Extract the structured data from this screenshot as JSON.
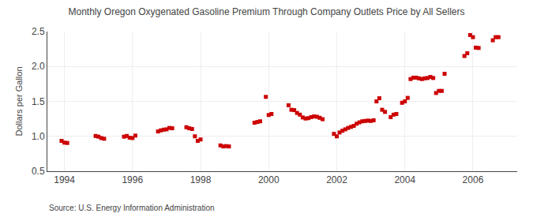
{
  "chart_data": {
    "type": "scatter",
    "title": "Monthly Oregon Oxygenated Gasoline Premium Through Company Outlets Price by All Sellers",
    "ylabel": "Dollars per Gallon",
    "annotations": [
      "Source: U.S. Energy Information Administration"
    ],
    "color": "#cc0000",
    "marker": "square",
    "grid": true,
    "xlim": [
      1993.5,
      2007.3
    ],
    "ylim": [
      0.5,
      2.5
    ],
    "xticks": [
      1994,
      1996,
      1998,
      2000,
      2002,
      2004,
      2006
    ],
    "yticks": [
      0.5,
      {
        "value": 1.0,
        "label": "1.0"
      },
      1.5,
      {
        "value": 2.0,
        "label": "2.0"
      },
      2.5
    ],
    "x": [
      1993.917,
      1994.0,
      1994.083,
      1994.917,
      1995.0,
      1995.083,
      1995.167,
      1995.75,
      1995.833,
      1995.917,
      1996.0,
      1996.083,
      1996.75,
      1996.833,
      1996.917,
      1997.0,
      1997.083,
      1997.167,
      1997.583,
      1997.667,
      1997.75,
      1997.833,
      1997.917,
      1998.0,
      1998.583,
      1998.667,
      1998.75,
      1998.833,
      1999.583,
      1999.667,
      1999.75,
      1999.917,
      2000.0,
      2000.083,
      2000.583,
      2000.667,
      2000.75,
      2000.833,
      2000.917,
      2001.0,
      2001.083,
      2001.167,
      2001.25,
      2001.333,
      2001.417,
      2001.5,
      2001.583,
      2001.917,
      2002.0,
      2002.083,
      2002.167,
      2002.25,
      2002.333,
      2002.417,
      2002.5,
      2002.583,
      2002.667,
      2002.75,
      2002.833,
      2002.917,
      2003.0,
      2003.083,
      2003.167,
      2003.25,
      2003.333,
      2003.417,
      2003.583,
      2003.667,
      2003.75,
      2003.917,
      2004.0,
      2004.083,
      2004.167,
      2004.25,
      2004.333,
      2004.417,
      2004.5,
      2004.583,
      2004.667,
      2004.75,
      2004.833,
      2004.917,
      2005.0,
      2005.083,
      2005.167,
      2005.75,
      2005.833,
      2005.917,
      2006.0,
      2006.083,
      2006.167,
      2006.583,
      2006.667,
      2006.75
    ],
    "values": [
      0.935,
      0.91,
      0.905,
      1.005,
      0.995,
      0.975,
      0.965,
      0.995,
      1.005,
      0.98,
      0.975,
      1.01,
      1.07,
      1.085,
      1.095,
      1.1,
      1.12,
      1.115,
      1.13,
      1.115,
      1.105,
      1.0,
      0.935,
      0.955,
      0.87,
      0.855,
      0.86,
      0.855,
      1.195,
      1.205,
      1.215,
      1.565,
      1.305,
      1.32,
      1.445,
      1.38,
      1.375,
      1.335,
      1.31,
      1.27,
      1.255,
      1.26,
      1.275,
      1.285,
      1.28,
      1.265,
      1.245,
      1.035,
      1.0,
      1.055,
      1.08,
      1.1,
      1.12,
      1.135,
      1.15,
      1.18,
      1.2,
      1.215,
      1.22,
      1.225,
      1.22,
      1.23,
      1.5,
      1.545,
      1.38,
      1.35,
      1.275,
      1.31,
      1.32,
      1.48,
      1.5,
      1.55,
      1.82,
      1.84,
      1.84,
      1.83,
      1.82,
      1.83,
      1.835,
      1.85,
      1.835,
      1.62,
      1.65,
      1.65,
      1.895,
      2.15,
      2.19,
      2.45,
      2.42,
      2.27,
      2.265,
      2.375,
      2.42,
      2.42
    ]
  }
}
